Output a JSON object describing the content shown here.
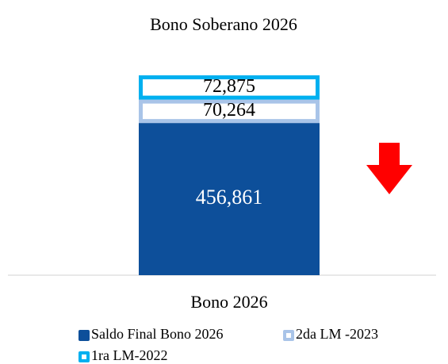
{
  "chart_data": {
    "type": "stacked_bar",
    "title": "Bono Soberano 2026",
    "categories": [
      "Bono 2026"
    ],
    "series": [
      {
        "name": "Saldo Final Bono 2026",
        "color": "#0d4f9a",
        "style": "solid",
        "values": [
          456861
        ],
        "value_labels": [
          "456,861"
        ]
      },
      {
        "name": "2da LM -2023",
        "color": "#a9c4e8",
        "style": "outline",
        "values": [
          70264
        ],
        "value_labels": [
          "70,264"
        ]
      },
      {
        "name": "1ra LM-2022",
        "color": "#00b0f0",
        "style": "outline",
        "values": [
          72875
        ],
        "value_labels": [
          "72,875"
        ]
      }
    ],
    "legend": "bottom"
  }
}
